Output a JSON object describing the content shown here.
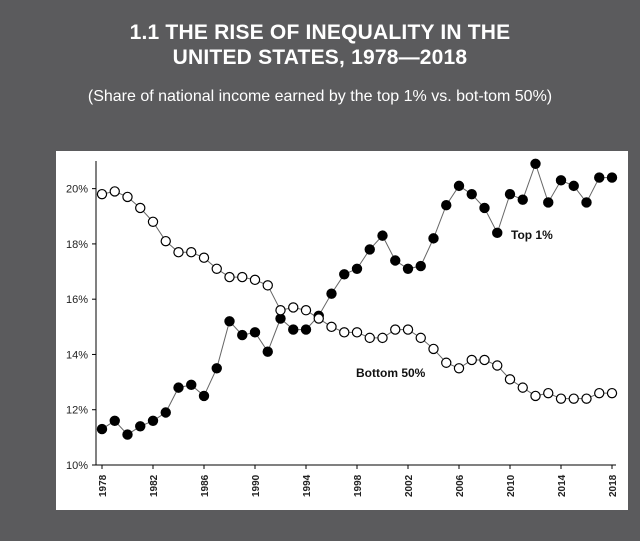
{
  "header": {
    "title_line1": "1.1 THE RISE OF INEQUALITY IN THE",
    "title_line2": "UNITED STATES, 1978—2018",
    "subtitle": "(Share of national income earned by the top 1% vs. bot-tom 50%)"
  },
  "chart_data": {
    "type": "line",
    "title": "1.1 THE RISE OF INEQUALITY IN THE UNITED STATES, 1978—2018",
    "subtitle": "(Share of national income earned by the top 1% vs. bot-tom 50%)",
    "xlabel": "",
    "ylabel": "",
    "x": [
      1978,
      1979,
      1980,
      1981,
      1982,
      1983,
      1984,
      1985,
      1986,
      1987,
      1988,
      1989,
      1990,
      1991,
      1992,
      1993,
      1994,
      1995,
      1996,
      1997,
      1998,
      1999,
      2000,
      2001,
      2002,
      2003,
      2004,
      2005,
      2006,
      2007,
      2008,
      2009,
      2010,
      2011,
      2012,
      2013,
      2014,
      2015,
      2016,
      2017,
      2018
    ],
    "xticks": [
      1978,
      1982,
      1986,
      1990,
      1994,
      1998,
      2002,
      2006,
      2010,
      2014,
      2018
    ],
    "xticklabels": [
      "1978",
      "1982",
      "1986",
      "1990",
      "1994",
      "1998",
      "2002",
      "2006",
      "2010",
      "2014",
      "2018"
    ],
    "yticks": [
      10,
      12,
      14,
      16,
      18,
      20
    ],
    "yticklabels": [
      "10%",
      "12%",
      "14%",
      "16%",
      "18%",
      "20%"
    ],
    "xlim": [
      1978,
      2018
    ],
    "ylim": [
      10,
      21
    ],
    "grid": false,
    "series": [
      {
        "name": "Top 1%",
        "marker": "filled-circle",
        "color": "#000000",
        "values": [
          11.3,
          11.6,
          11.1,
          11.4,
          11.6,
          11.9,
          12.8,
          12.9,
          12.5,
          13.5,
          15.2,
          14.7,
          14.8,
          14.1,
          15.3,
          14.9,
          14.9,
          15.4,
          16.2,
          16.9,
          17.1,
          17.8,
          18.3,
          17.4,
          17.1,
          17.2,
          18.2,
          19.4,
          20.1,
          19.8,
          19.3,
          18.4,
          19.8,
          19.6,
          20.9,
          19.5,
          20.3,
          20.1,
          19.5,
          20.4,
          20.4
        ]
      },
      {
        "name": "Bottom 50%",
        "marker": "open-circle",
        "color": "#000000",
        "values": [
          19.8,
          19.9,
          19.7,
          19.3,
          18.8,
          18.1,
          17.7,
          17.7,
          17.5,
          17.1,
          16.8,
          16.8,
          16.7,
          16.5,
          15.6,
          15.7,
          15.6,
          15.3,
          15.0,
          14.8,
          14.8,
          14.6,
          14.6,
          14.9,
          14.9,
          14.6,
          14.2,
          13.7,
          13.5,
          13.8,
          13.8,
          13.6,
          13.1,
          12.8,
          12.5,
          12.6,
          12.4,
          12.4,
          12.4,
          12.6,
          12.6
        ]
      }
    ],
    "annotations": [
      {
        "text": "Top 1%",
        "series": "Top 1%"
      },
      {
        "text": "Bottom 50%",
        "series": "Bottom 50%"
      }
    ],
    "colors": {
      "background": "#5b5b5d",
      "panel": "#ffffff",
      "line": "#000000"
    }
  }
}
